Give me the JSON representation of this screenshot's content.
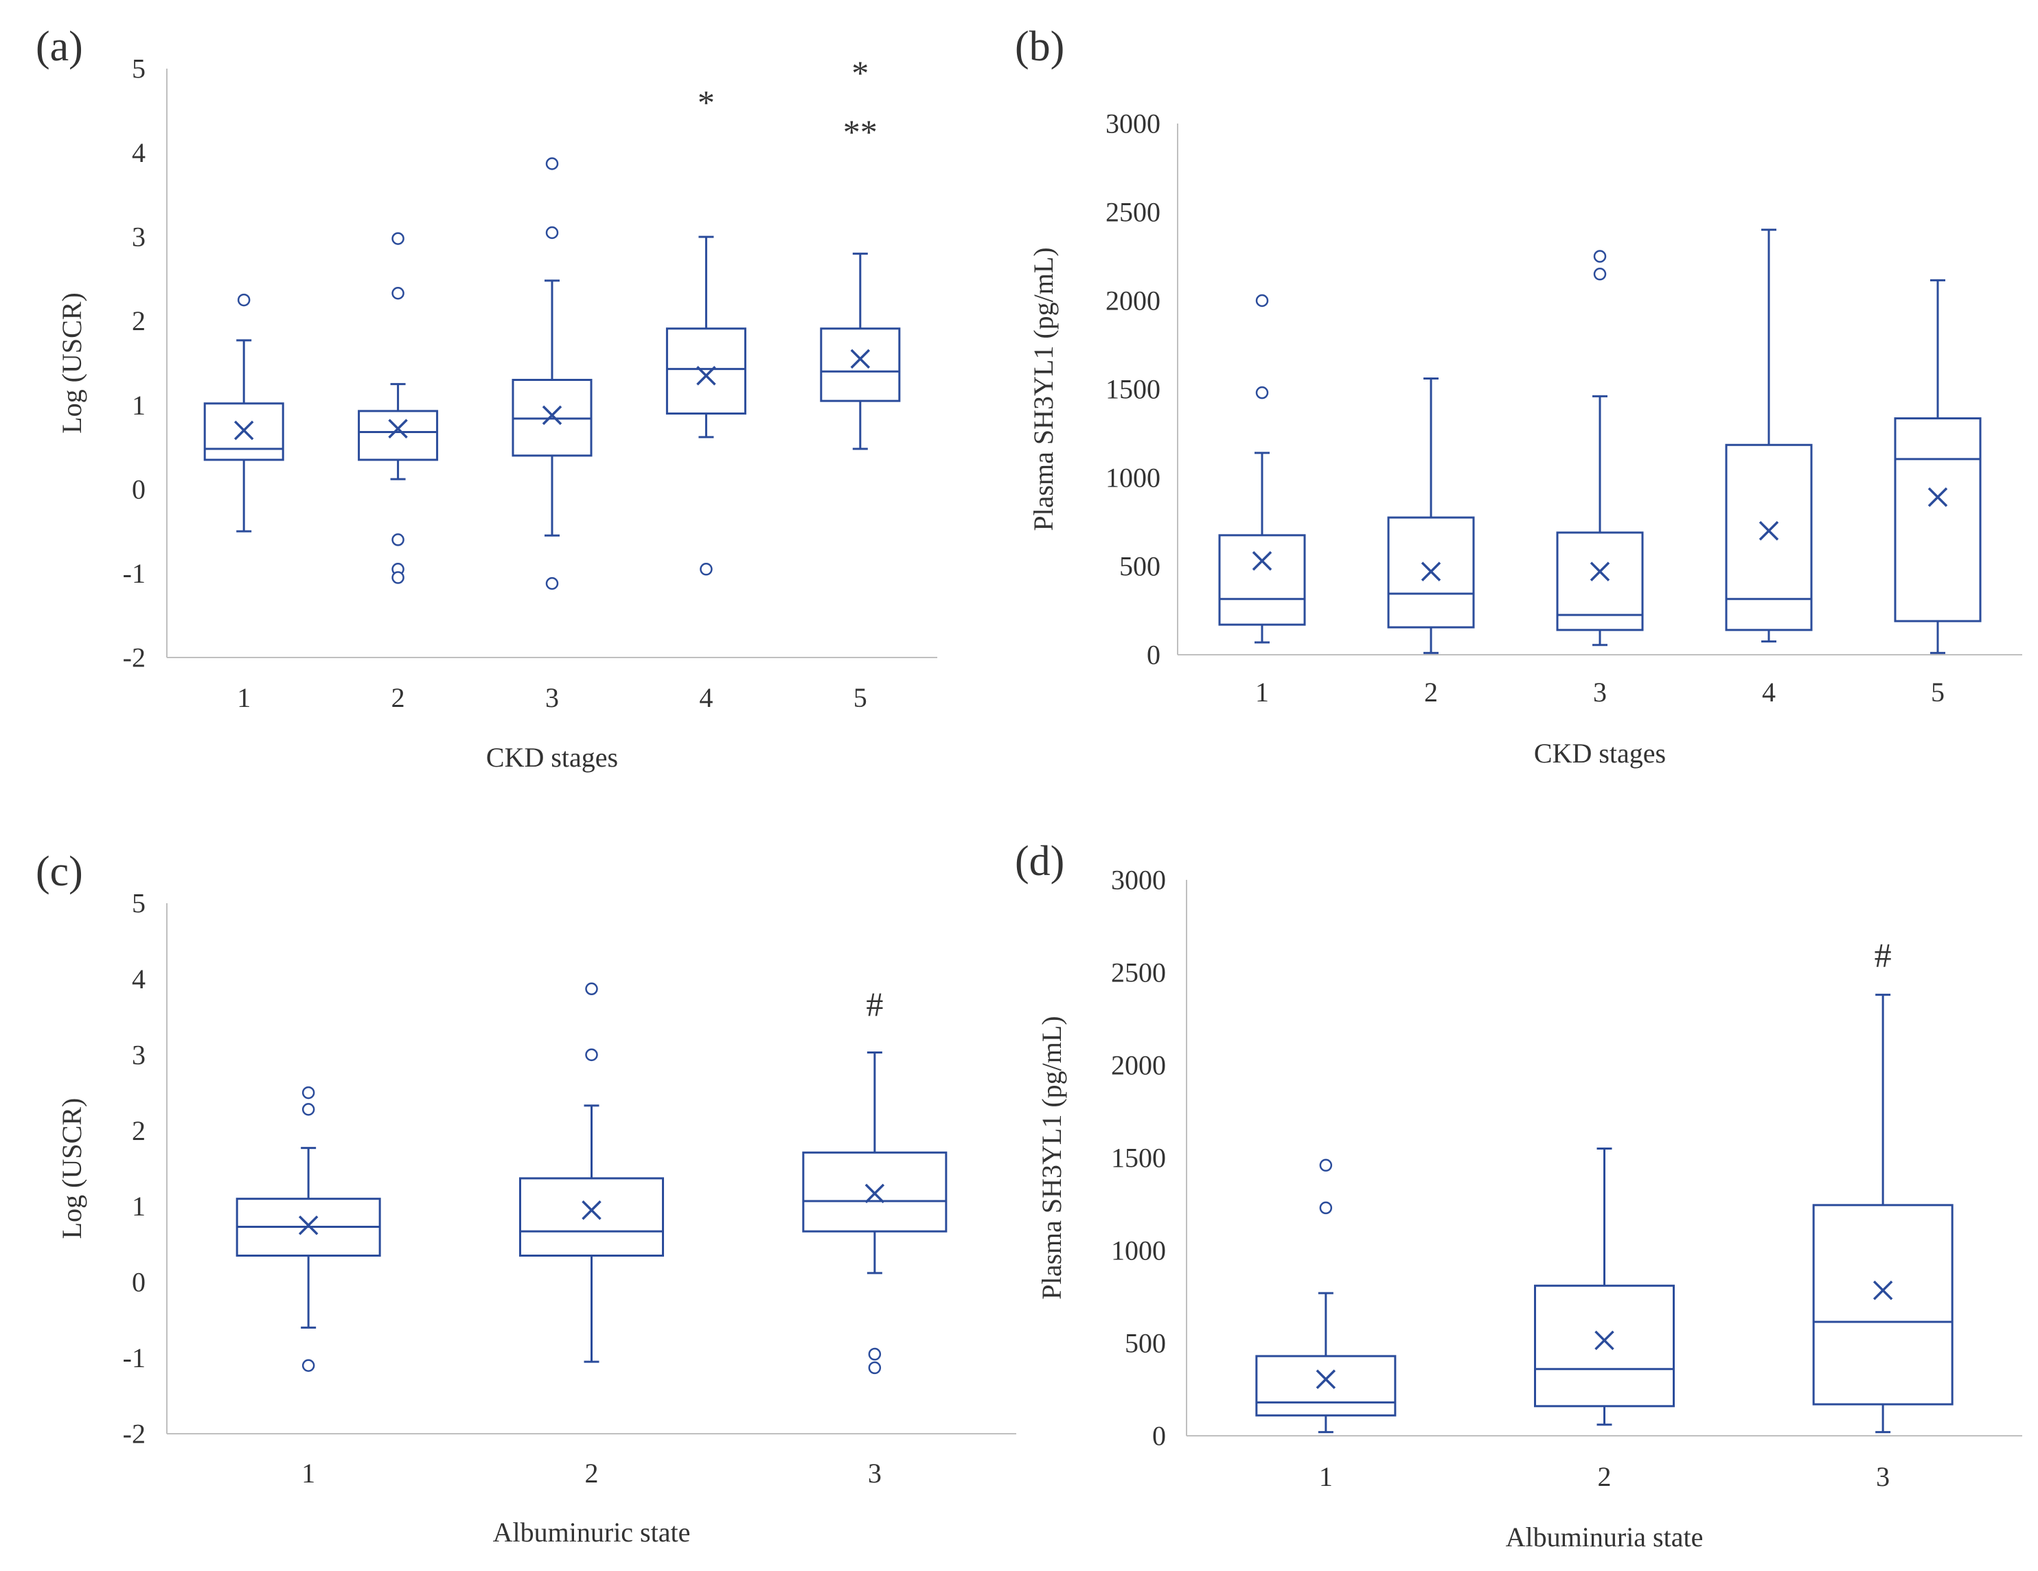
{
  "style": {
    "box_color": "#2B4C9B",
    "axis_color": "#BFBFBF",
    "text_color": "#333333",
    "panel_label_color": "#000000"
  },
  "chart_data": [
    {
      "id": "a",
      "panel_label": "(a)",
      "type": "box",
      "xlabel": "CKD stages",
      "ylabel": "Log (USCR)",
      "ylim": [
        -2,
        5
      ],
      "yticks": [
        -2,
        -1,
        0,
        1,
        2,
        3,
        4,
        5
      ],
      "categories": [
        "1",
        "2",
        "3",
        "4",
        "5"
      ],
      "boxes": [
        {
          "category": "1",
          "whisker_low": -0.5,
          "q1": 0.35,
          "median": 0.48,
          "q3": 1.02,
          "whisker_high": 1.77,
          "mean": 0.7,
          "outliers": [
            2.25
          ]
        },
        {
          "category": "2",
          "whisker_low": 0.12,
          "q1": 0.35,
          "median": 0.68,
          "q3": 0.93,
          "whisker_high": 1.25,
          "mean": 0.72,
          "outliers": [
            2.33,
            2.98,
            -0.6,
            -0.95,
            -1.05
          ]
        },
        {
          "category": "3",
          "whisker_low": -0.55,
          "q1": 0.4,
          "median": 0.84,
          "q3": 1.3,
          "whisker_high": 2.48,
          "mean": 0.88,
          "outliers": [
            3.05,
            3.87,
            -1.12
          ]
        },
        {
          "category": "4",
          "whisker_low": 0.62,
          "q1": 0.9,
          "median": 1.43,
          "q3": 1.91,
          "whisker_high": 3.0,
          "mean": 1.35,
          "outliers": [
            -0.95
          ]
        },
        {
          "category": "5",
          "whisker_low": 0.48,
          "q1": 1.05,
          "median": 1.4,
          "q3": 1.91,
          "whisker_high": 2.8,
          "mean": 1.55,
          "outliers": []
        }
      ],
      "annotations": [
        {
          "text": "*",
          "category": "4",
          "y": 4.6
        },
        {
          "text": "*",
          "category": "5",
          "y": 4.95
        },
        {
          "text": "**",
          "category": "5",
          "y": 4.25
        }
      ]
    },
    {
      "id": "b",
      "panel_label": "(b)",
      "type": "box",
      "xlabel": "CKD stages",
      "ylabel": "Plasma SH3YL1  (pg/mL)",
      "ylim": [
        0,
        3000
      ],
      "yticks": [
        0,
        500,
        1000,
        1500,
        2000,
        2500,
        3000
      ],
      "categories": [
        "1",
        "2",
        "3",
        "4",
        "5"
      ],
      "boxes": [
        {
          "category": "1",
          "whisker_low": 70,
          "q1": 170,
          "median": 315,
          "q3": 675,
          "whisker_high": 1140,
          "mean": 530,
          "outliers": [
            1480,
            2000
          ]
        },
        {
          "category": "2",
          "whisker_low": 10,
          "q1": 155,
          "median": 345,
          "q3": 775,
          "whisker_high": 1560,
          "mean": 470,
          "outliers": []
        },
        {
          "category": "3",
          "whisker_low": 55,
          "q1": 140,
          "median": 225,
          "q3": 690,
          "whisker_high": 1460,
          "mean": 470,
          "outliers": [
            2150,
            2250
          ]
        },
        {
          "category": "4",
          "whisker_low": 75,
          "q1": 140,
          "median": 315,
          "q3": 1185,
          "whisker_high": 2400,
          "mean": 700,
          "outliers": []
        },
        {
          "category": "5",
          "whisker_low": 10,
          "q1": 190,
          "median": 1105,
          "q3": 1335,
          "whisker_high": 2115,
          "mean": 890,
          "outliers": []
        }
      ],
      "annotations": []
    },
    {
      "id": "c",
      "panel_label": "(c)",
      "type": "box",
      "xlabel": "Albuminuric state",
      "ylabel": "Log (USCR)",
      "ylim": [
        -2,
        5
      ],
      "yticks": [
        -2,
        -1,
        0,
        1,
        2,
        3,
        4,
        5
      ],
      "categories": [
        "1",
        "2",
        "3"
      ],
      "boxes": [
        {
          "category": "1",
          "whisker_low": -0.6,
          "q1": 0.35,
          "median": 0.73,
          "q3": 1.1,
          "whisker_high": 1.77,
          "mean": 0.75,
          "outliers": [
            2.28,
            2.5,
            -1.1
          ]
        },
        {
          "category": "2",
          "whisker_low": -1.05,
          "q1": 0.35,
          "median": 0.67,
          "q3": 1.37,
          "whisker_high": 2.33,
          "mean": 0.95,
          "outliers": [
            3.0,
            3.87
          ]
        },
        {
          "category": "3",
          "whisker_low": 0.12,
          "q1": 0.67,
          "median": 1.07,
          "q3": 1.71,
          "whisker_high": 3.03,
          "mean": 1.17,
          "outliers": [
            -0.95,
            -1.13
          ]
        }
      ],
      "annotations": [
        {
          "text": "#",
          "category": "3",
          "y": 3.67
        }
      ]
    },
    {
      "id": "d",
      "panel_label": "(d)",
      "type": "box",
      "xlabel": "Albuminuria state",
      "ylabel": "Plasma SH3YL1  (pg/mL)",
      "ylim": [
        0,
        3000
      ],
      "yticks": [
        0,
        500,
        1000,
        1500,
        2000,
        2500,
        3000
      ],
      "categories": [
        "1",
        "2",
        "3"
      ],
      "boxes": [
        {
          "category": "1",
          "whisker_low": 20,
          "q1": 110,
          "median": 180,
          "q3": 430,
          "whisker_high": 770,
          "mean": 305,
          "outliers": [
            1230,
            1460
          ]
        },
        {
          "category": "2",
          "whisker_low": 60,
          "q1": 160,
          "median": 360,
          "q3": 810,
          "whisker_high": 1550,
          "mean": 515,
          "outliers": []
        },
        {
          "category": "3",
          "whisker_low": 20,
          "q1": 170,
          "median": 615,
          "q3": 1245,
          "whisker_high": 2380,
          "mean": 785,
          "outliers": []
        }
      ],
      "annotations": [
        {
          "text": "#",
          "category": "3",
          "y": 2595
        }
      ]
    }
  ]
}
